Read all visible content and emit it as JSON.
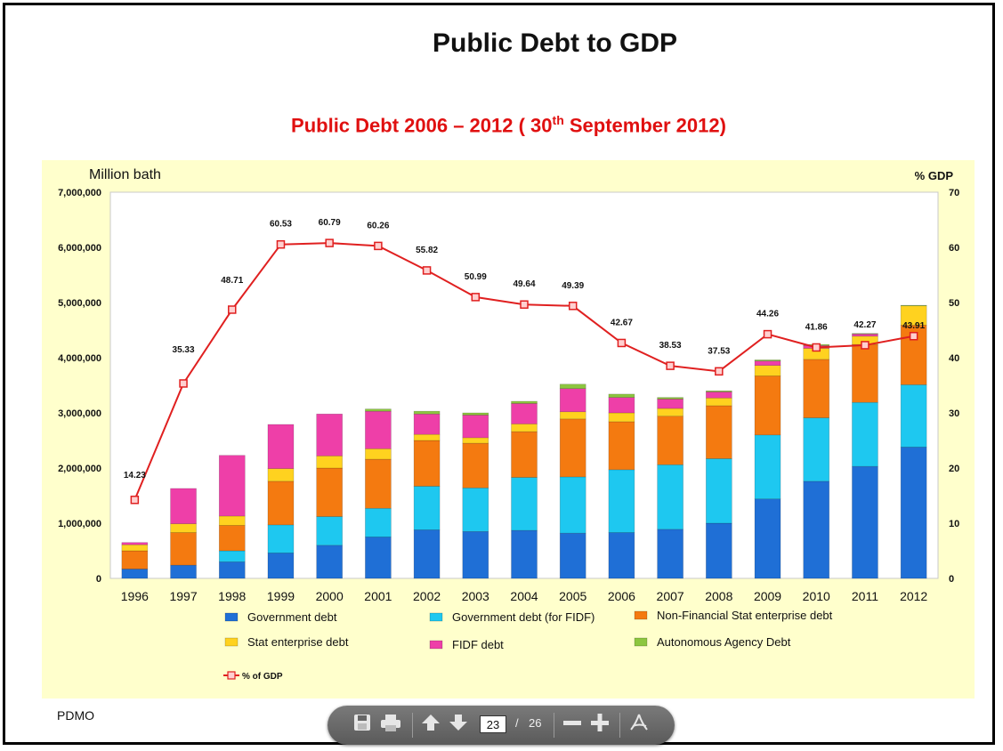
{
  "slide": {
    "title": "Public Debt to GDP",
    "subtitle_pre": "Public Debt 2006 – 2012 ( 30",
    "subtitle_sup": "th",
    "subtitle_post": " September 2012)",
    "footer": "PDMO"
  },
  "toolbar": {
    "page_current": "23",
    "page_sep": "/",
    "page_total": "26",
    "icons": [
      "save-icon",
      "print-icon",
      "arrow-up-icon",
      "arrow-down-icon",
      "zoom-out-icon",
      "zoom-in-icon",
      "acrobat-icon"
    ]
  },
  "colors": {
    "government_debt": "#1f6fd6",
    "gov_debt_fidf": "#1ec8f0",
    "nonfin_state_enterprise": "#f47a10",
    "state_enterprise": "#ffd21f",
    "fidf_debt": "#ee3fa8",
    "autonomous_agency": "#8cc63f",
    "gdp_line": "#e02020",
    "panel_bg": "#ffffcc"
  },
  "chart_data": {
    "type": "bar",
    "stacked": true,
    "y_left_label": "Million bath",
    "y_right_label": "% GDP",
    "ylim": [
      0,
      7000000
    ],
    "y_ticks": [
      "0",
      "1,000,000",
      "2,000,000",
      "3,000,000",
      "4,000,000",
      "5,000,000",
      "6,000,000",
      "7,000,000"
    ],
    "y2lim": [
      0,
      70
    ],
    "y2_ticks": [
      "0",
      "10",
      "20",
      "30",
      "40",
      "50",
      "60",
      "70"
    ],
    "grid": false,
    "legend_position": "bottom",
    "categories": [
      "1996",
      "1997",
      "1998",
      "1999",
      "2000",
      "2001",
      "2002",
      "2003",
      "2004",
      "2005",
      "2006",
      "2007",
      "2008",
      "2009",
      "2010",
      "2011",
      "2012"
    ],
    "series": [
      {
        "name": "Government debt",
        "color_key": "government_debt",
        "values": [
          170000,
          240000,
          300000,
          460000,
          600000,
          750000,
          880000,
          850000,
          870000,
          820000,
          830000,
          890000,
          1000000,
          1440000,
          1760000,
          2030000,
          2380000
        ]
      },
      {
        "name": "Government debt (for FIDF)",
        "color_key": "gov_debt_fidf",
        "values": [
          0,
          0,
          200000,
          510000,
          520000,
          520000,
          790000,
          790000,
          960000,
          1020000,
          1140000,
          1170000,
          1170000,
          1160000,
          1150000,
          1160000,
          1130000
        ]
      },
      {
        "name": "Non-Financial Stat enterprise debt",
        "color_key": "nonfin_state_enterprise",
        "values": [
          330000,
          590000,
          460000,
          790000,
          880000,
          890000,
          830000,
          810000,
          830000,
          1050000,
          870000,
          880000,
          960000,
          1070000,
          1060000,
          1050000,
          1080000
        ]
      },
      {
        "name": "Stat enterprise debt",
        "color_key": "state_enterprise",
        "values": [
          110000,
          160000,
          170000,
          230000,
          220000,
          190000,
          110000,
          100000,
          140000,
          130000,
          160000,
          140000,
          140000,
          190000,
          200000,
          150000,
          350000
        ]
      },
      {
        "name": "FIDF debt",
        "color_key": "fidf_debt",
        "values": [
          40000,
          640000,
          1100000,
          800000,
          760000,
          680000,
          370000,
          410000,
          370000,
          420000,
          280000,
          170000,
          110000,
          80000,
          50000,
          40000,
          0
        ]
      },
      {
        "name": "Autonomous Agency Debt",
        "color_key": "autonomous_agency",
        "values": [
          0,
          0,
          0,
          0,
          0,
          40000,
          50000,
          40000,
          40000,
          80000,
          60000,
          30000,
          20000,
          20000,
          20000,
          10000,
          10000
        ]
      }
    ],
    "line_series": {
      "name": "% of GDP",
      "axis": "right",
      "color_key": "gdp_line",
      "values": [
        14.23,
        35.33,
        48.71,
        60.53,
        60.79,
        60.26,
        55.82,
        50.99,
        49.64,
        49.39,
        42.67,
        38.53,
        37.53,
        44.26,
        41.86,
        42.27,
        43.91
      ],
      "labels": [
        "14.23",
        "35.33",
        "48.71",
        "60.53",
        "60.79",
        "60.26",
        "55.82",
        "50.99",
        "49.64",
        "49.39",
        "42.67",
        "38.53",
        "37.53",
        "44.26",
        "41.86",
        "42.27",
        "43.91"
      ]
    }
  }
}
